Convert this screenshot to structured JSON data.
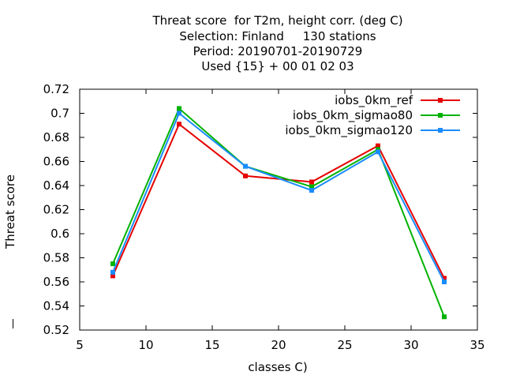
{
  "chart_data": {
    "type": "line",
    "title_lines": [
      "Threat score  for T2m, height corr. (deg C)",
      "Selection: Finland     130 stations",
      "Period: 20190701-20190729",
      "Used {15} + 00 01 02 03"
    ],
    "xlabel": "classes C)",
    "ylabel": "Threat score",
    "xlim": [
      5,
      35
    ],
    "ylim": [
      0.52,
      0.72
    ],
    "xticks": [
      "5",
      "10",
      "15",
      "20",
      "25",
      "30",
      "35"
    ],
    "yticks": [
      "0.52",
      "0.54",
      "0.56",
      "0.58",
      "0.6",
      "0.62",
      "0.64",
      "0.66",
      "0.68",
      "0.7",
      "0.72"
    ],
    "x": [
      7.5,
      12.5,
      17.5,
      22.5,
      27.5,
      32.5
    ],
    "grid": false,
    "legend_position": "top-right",
    "series": [
      {
        "name": "iobs_0km_ref",
        "color": "#e50000",
        "values": [
          0.565,
          0.691,
          0.648,
          0.643,
          0.673,
          0.563
        ]
      },
      {
        "name": "iobs_0km_sigmao80",
        "color": "#00b200",
        "values": [
          0.575,
          0.704,
          0.656,
          0.639,
          0.67,
          0.531
        ]
      },
      {
        "name": "iobs_0km_sigmao120",
        "color": "#1a8cff",
        "values": [
          0.568,
          0.7,
          0.656,
          0.636,
          0.668,
          0.56
        ]
      }
    ]
  }
}
